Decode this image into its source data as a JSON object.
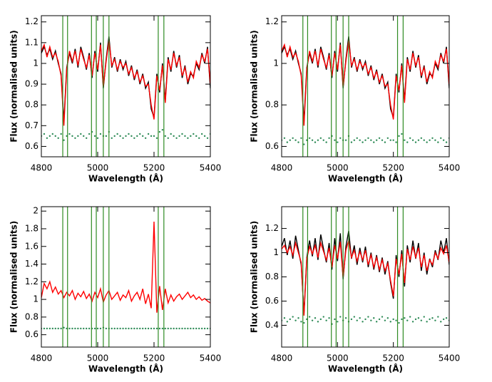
{
  "chart_data": [
    {
      "type": "line",
      "xlabel": "Wavelength (Å)",
      "ylabel": "Flux (normalised units)",
      "x": [
        4800,
        4810,
        4820,
        4830,
        4840,
        4850,
        4860,
        4870,
        4880,
        4890,
        4900,
        4910,
        4920,
        4930,
        4940,
        4950,
        4960,
        4970,
        4980,
        4990,
        5000,
        5010,
        5020,
        5030,
        5040,
        5050,
        5060,
        5070,
        5080,
        5090,
        5100,
        5110,
        5120,
        5130,
        5140,
        5150,
        5160,
        5170,
        5180,
        5190,
        5200,
        5210,
        5220,
        5230,
        5240,
        5250,
        5260,
        5270,
        5280,
        5290,
        5300,
        5310,
        5320,
        5330,
        5340,
        5350,
        5360,
        5370,
        5380,
        5390,
        5400
      ],
      "series": [
        {
          "color": "#000000",
          "values": [
            1.05,
            1.08,
            1.04,
            1.07,
            1.02,
            1.06,
            1.0,
            0.95,
            0.72,
            0.98,
            1.05,
            1.0,
            1.07,
            0.98,
            1.08,
            1.03,
            0.97,
            1.05,
            0.93,
            1.06,
            0.96,
            1.1,
            0.88,
            1.02,
            1.13,
            0.98,
            1.03,
            0.96,
            1.02,
            0.97,
            1.01,
            0.94,
            0.99,
            0.92,
            0.97,
            0.9,
            0.95,
            0.88,
            0.91,
            0.78,
            0.74,
            0.95,
            0.86,
            1.0,
            0.82,
            1.03,
            0.96,
            1.06,
            0.98,
            1.04,
            0.93,
            0.99,
            0.9,
            0.95,
            0.94,
            1.0,
            0.97,
            1.05,
            1.0,
            1.08,
            0.88
          ]
        },
        {
          "color": "#ff0000",
          "values": [
            1.06,
            1.09,
            1.03,
            1.08,
            1.03,
            1.05,
            1.01,
            0.94,
            0.7,
            0.97,
            1.06,
            1.01,
            1.06,
            0.99,
            1.07,
            1.02,
            0.98,
            1.04,
            0.94,
            1.05,
            0.97,
            1.09,
            0.89,
            1.01,
            1.11,
            0.99,
            1.02,
            0.97,
            1.01,
            0.98,
            1.0,
            0.95,
            0.98,
            0.93,
            0.96,
            0.91,
            0.94,
            0.89,
            0.9,
            0.8,
            0.73,
            0.94,
            0.87,
            0.99,
            0.81,
            1.02,
            0.97,
            1.05,
            0.99,
            1.03,
            0.94,
            0.98,
            0.91,
            0.96,
            0.93,
            1.01,
            0.98,
            1.04,
            1.01,
            1.07,
            0.9
          ]
        },
        {
          "color": "#2e8b57",
          "mode": "markers",
          "values": [
            0.65,
            0.66,
            0.64,
            0.65,
            0.66,
            0.65,
            0.64,
            0.66,
            0.63,
            0.65,
            0.66,
            0.65,
            0.64,
            0.65,
            0.66,
            0.65,
            0.64,
            0.66,
            0.67,
            0.65,
            0.64,
            0.66,
            0.65,
            0.65,
            0.67,
            0.64,
            0.65,
            0.66,
            0.65,
            0.64,
            0.65,
            0.66,
            0.65,
            0.64,
            0.65,
            0.66,
            0.65,
            0.64,
            0.66,
            0.65,
            0.65,
            0.64,
            0.67,
            0.68,
            0.65,
            0.64,
            0.66,
            0.65,
            0.64,
            0.65,
            0.66,
            0.65,
            0.64,
            0.65,
            0.66,
            0.65,
            0.64,
            0.66,
            0.65,
            0.64,
            0.66
          ]
        }
      ],
      "vlines": [
        4876,
        4893,
        4978,
        4995,
        5020,
        5040,
        5215,
        5235
      ],
      "xlim": [
        4800,
        5400
      ],
      "xticks": [
        4800,
        5000,
        5200,
        5400
      ],
      "ylim": [
        0.55,
        1.23
      ],
      "yticks": [
        0.6,
        0.7,
        0.8,
        0.9,
        1.0,
        1.1,
        1.2
      ]
    },
    {
      "type": "line",
      "xlabel": "Wavelength (Å)",
      "ylabel": "Flux (normalised units)",
      "x": [
        4800,
        4810,
        4820,
        4830,
        4840,
        4850,
        4860,
        4870,
        4880,
        4890,
        4900,
        4910,
        4920,
        4930,
        4940,
        4950,
        4960,
        4970,
        4980,
        4990,
        5000,
        5010,
        5020,
        5030,
        5040,
        5050,
        5060,
        5070,
        5080,
        5090,
        5100,
        5110,
        5120,
        5130,
        5140,
        5150,
        5160,
        5170,
        5180,
        5190,
        5200,
        5210,
        5220,
        5230,
        5240,
        5250,
        5260,
        5270,
        5280,
        5290,
        5300,
        5310,
        5320,
        5330,
        5340,
        5350,
        5360,
        5370,
        5380,
        5390,
        5400
      ],
      "series": [
        {
          "color": "#000000",
          "values": [
            1.05,
            1.08,
            1.04,
            1.07,
            1.02,
            1.06,
            1.0,
            0.95,
            0.72,
            0.98,
            1.05,
            1.0,
            1.07,
            0.98,
            1.08,
            1.03,
            0.97,
            1.05,
            0.93,
            1.06,
            0.96,
            1.1,
            0.88,
            1.02,
            1.13,
            0.98,
            1.03,
            0.96,
            1.02,
            0.97,
            1.01,
            0.94,
            0.99,
            0.92,
            0.97,
            0.9,
            0.95,
            0.88,
            0.91,
            0.78,
            0.74,
            0.95,
            0.86,
            1.0,
            0.82,
            1.03,
            0.96,
            1.06,
            0.98,
            1.04,
            0.93,
            0.99,
            0.9,
            0.95,
            0.94,
            1.0,
            0.97,
            1.05,
            1.0,
            1.08,
            0.88
          ]
        },
        {
          "color": "#ff0000",
          "values": [
            1.06,
            1.09,
            1.03,
            1.08,
            1.03,
            1.05,
            1.01,
            0.94,
            0.7,
            0.97,
            1.06,
            1.01,
            1.06,
            0.99,
            1.07,
            1.02,
            0.98,
            1.04,
            0.94,
            1.05,
            0.97,
            1.09,
            0.89,
            1.01,
            1.11,
            0.99,
            1.02,
            0.97,
            1.01,
            0.98,
            1.0,
            0.95,
            0.98,
            0.93,
            0.96,
            0.91,
            0.94,
            0.89,
            0.9,
            0.8,
            0.73,
            0.94,
            0.87,
            0.99,
            0.81,
            1.02,
            0.97,
            1.05,
            0.99,
            1.03,
            0.94,
            0.98,
            0.91,
            0.96,
            0.93,
            1.01,
            0.98,
            1.04,
            1.01,
            1.07,
            0.9
          ]
        },
        {
          "color": "#2e8b57",
          "mode": "markers",
          "values": [
            0.63,
            0.64,
            0.62,
            0.63,
            0.64,
            0.63,
            0.62,
            0.64,
            0.61,
            0.63,
            0.64,
            0.63,
            0.62,
            0.63,
            0.64,
            0.63,
            0.62,
            0.64,
            0.65,
            0.63,
            0.62,
            0.64,
            0.63,
            0.63,
            0.65,
            0.62,
            0.63,
            0.64,
            0.63,
            0.62,
            0.63,
            0.64,
            0.63,
            0.62,
            0.63,
            0.64,
            0.63,
            0.62,
            0.64,
            0.63,
            0.63,
            0.62,
            0.65,
            0.66,
            0.63,
            0.62,
            0.64,
            0.63,
            0.62,
            0.63,
            0.64,
            0.63,
            0.62,
            0.63,
            0.64,
            0.63,
            0.62,
            0.64,
            0.63,
            0.62,
            0.64
          ]
        }
      ],
      "vlines": [
        4876,
        4893,
        4978,
        4995,
        5020,
        5040,
        5215,
        5235
      ],
      "xlim": [
        4800,
        5400
      ],
      "xticks": [
        4800,
        5000,
        5200,
        5400
      ],
      "ylim": [
        0.55,
        1.23
      ],
      "yticks": [
        0.6,
        0.8,
        1.0,
        1.2
      ]
    },
    {
      "type": "line",
      "xlabel": "Wavelength (Å)",
      "ylabel": "Flux (normalised units)",
      "x": [
        4800,
        4810,
        4820,
        4830,
        4840,
        4850,
        4860,
        4870,
        4880,
        4890,
        4900,
        4910,
        4920,
        4930,
        4940,
        4950,
        4960,
        4970,
        4980,
        4990,
        5000,
        5010,
        5020,
        5030,
        5040,
        5050,
        5060,
        5070,
        5080,
        5090,
        5100,
        5110,
        5120,
        5130,
        5140,
        5150,
        5160,
        5170,
        5180,
        5190,
        5200,
        5210,
        5220,
        5230,
        5240,
        5250,
        5260,
        5270,
        5280,
        5290,
        5300,
        5310,
        5320,
        5330,
        5340,
        5350,
        5360,
        5370,
        5380,
        5390,
        5400
      ],
      "series": [
        {
          "color": "#ff0000",
          "values": [
            1.02,
            1.18,
            1.12,
            1.2,
            1.08,
            1.14,
            1.06,
            1.1,
            1.02,
            1.08,
            1.04,
            1.1,
            1.0,
            1.07,
            1.03,
            1.09,
            1.01,
            1.06,
            0.98,
            1.08,
            1.02,
            1.12,
            0.97,
            1.05,
            1.1,
            1.0,
            1.04,
            1.08,
            0.99,
            1.05,
            1.02,
            1.1,
            0.98,
            1.04,
            1.08,
            1.0,
            1.12,
            0.95,
            1.06,
            0.9,
            1.88,
            0.85,
            1.15,
            0.88,
            1.12,
            0.96,
            1.05,
            0.98,
            1.03,
            1.06,
            1.0,
            1.04,
            1.08,
            1.02,
            1.05,
            1.0,
            1.03,
            0.99,
            1.01,
            0.98,
            0.96
          ]
        },
        {
          "color": "#2e8b57",
          "mode": "markers",
          "values": [
            0.67,
            0.67,
            0.67,
            0.67,
            0.67,
            0.67,
            0.67,
            0.67,
            0.68,
            0.67,
            0.67,
            0.67,
            0.67,
            0.67,
            0.67,
            0.67,
            0.67,
            0.67,
            0.67,
            0.67,
            0.67,
            0.67,
            0.68,
            0.67,
            0.67,
            0.67,
            0.67,
            0.67,
            0.67,
            0.67,
            0.67,
            0.67,
            0.67,
            0.67,
            0.67,
            0.67,
            0.67,
            0.67,
            0.67,
            0.67,
            0.67,
            0.67,
            0.67,
            0.67,
            0.67,
            0.67,
            0.67,
            0.67,
            0.67,
            0.67,
            0.67,
            0.67,
            0.67,
            0.67,
            0.67,
            0.67,
            0.67,
            0.67,
            0.67,
            0.67,
            0.67
          ]
        }
      ],
      "vlines": [
        4876,
        4893,
        4978,
        4995,
        5020,
        5040,
        5215,
        5235
      ],
      "xlim": [
        4800,
        5400
      ],
      "xticks": [
        4800,
        5000,
        5200,
        5400
      ],
      "ylim": [
        0.46,
        2.05
      ],
      "yticks": [
        0.6,
        0.8,
        1.0,
        1.2,
        1.4,
        1.6,
        1.8,
        2.0
      ]
    },
    {
      "type": "line",
      "xlabel": "Wavelength (Å)",
      "ylabel": "Flux (normalised units)",
      "x": [
        4800,
        4810,
        4820,
        4830,
        4840,
        4850,
        4860,
        4870,
        4880,
        4890,
        4900,
        4910,
        4920,
        4930,
        4940,
        4950,
        4960,
        4970,
        4980,
        4990,
        5000,
        5010,
        5020,
        5030,
        5040,
        5050,
        5060,
        5070,
        5080,
        5090,
        5100,
        5110,
        5120,
        5130,
        5140,
        5150,
        5160,
        5170,
        5180,
        5190,
        5200,
        5210,
        5220,
        5230,
        5240,
        5250,
        5260,
        5270,
        5280,
        5290,
        5300,
        5310,
        5320,
        5330,
        5340,
        5350,
        5360,
        5370,
        5380,
        5390,
        5400
      ],
      "series": [
        {
          "color": "#000000",
          "values": [
            1.05,
            1.12,
            0.98,
            1.1,
            0.95,
            1.14,
            1.02,
            0.9,
            0.5,
            0.96,
            1.1,
            0.97,
            1.12,
            0.94,
            1.15,
            1.03,
            0.92,
            1.08,
            0.86,
            1.12,
            0.93,
            1.16,
            0.78,
            1.05,
            1.18,
            0.95,
            1.06,
            0.9,
            1.04,
            0.92,
            1.05,
            0.88,
            1.0,
            0.86,
            0.98,
            0.84,
            0.96,
            0.82,
            0.93,
            0.75,
            0.62,
            0.98,
            0.8,
            1.02,
            0.72,
            1.06,
            0.92,
            1.1,
            0.95,
            1.08,
            0.85,
            1.0,
            0.82,
            0.95,
            0.88,
            1.02,
            0.94,
            1.1,
            1.0,
            1.12,
            0.9
          ]
        },
        {
          "color": "#ff0000",
          "values": [
            1.03,
            1.06,
            1.0,
            1.05,
            0.98,
            1.08,
            1.0,
            0.92,
            0.48,
            0.95,
            1.05,
            0.99,
            1.06,
            0.96,
            1.08,
            1.01,
            0.94,
            1.04,
            0.88,
            1.06,
            0.95,
            1.09,
            0.8,
            1.02,
            1.1,
            0.96,
            1.02,
            0.93,
            1.01,
            0.94,
            1.02,
            0.9,
            0.98,
            0.88,
            0.96,
            0.86,
            0.94,
            0.85,
            0.91,
            0.77,
            0.64,
            0.95,
            0.82,
            0.99,
            0.75,
            1.03,
            0.94,
            1.05,
            0.96,
            1.04,
            0.88,
            0.98,
            0.85,
            0.94,
            0.9,
            1.0,
            0.95,
            1.04,
            0.99,
            1.06,
            0.92
          ]
        },
        {
          "color": "#2e8b57",
          "mode": "markers",
          "values": [
            0.44,
            0.46,
            0.43,
            0.45,
            0.47,
            0.44,
            0.46,
            0.43,
            0.42,
            0.45,
            0.47,
            0.44,
            0.46,
            0.43,
            0.45,
            0.47,
            0.44,
            0.46,
            0.41,
            0.45,
            0.43,
            0.47,
            0.44,
            0.46,
            0.43,
            0.45,
            0.47,
            0.44,
            0.46,
            0.43,
            0.45,
            0.47,
            0.44,
            0.46,
            0.43,
            0.45,
            0.47,
            0.44,
            0.46,
            0.43,
            0.45,
            0.44,
            0.42,
            0.45,
            0.46,
            0.44,
            0.47,
            0.43,
            0.45,
            0.46,
            0.44,
            0.47,
            0.43,
            0.45,
            0.46,
            0.44,
            0.47,
            0.43,
            0.45,
            0.46,
            0.44
          ]
        }
      ],
      "vlines": [
        4876,
        4893,
        4978,
        4995,
        5020,
        5040,
        5215,
        5235
      ],
      "xlim": [
        4800,
        5400
      ],
      "xticks": [
        4800,
        5000,
        5200,
        5400
      ],
      "ylim": [
        0.22,
        1.38
      ],
      "yticks": [
        0.4,
        0.6,
        0.8,
        1.0,
        1.2
      ]
    }
  ]
}
